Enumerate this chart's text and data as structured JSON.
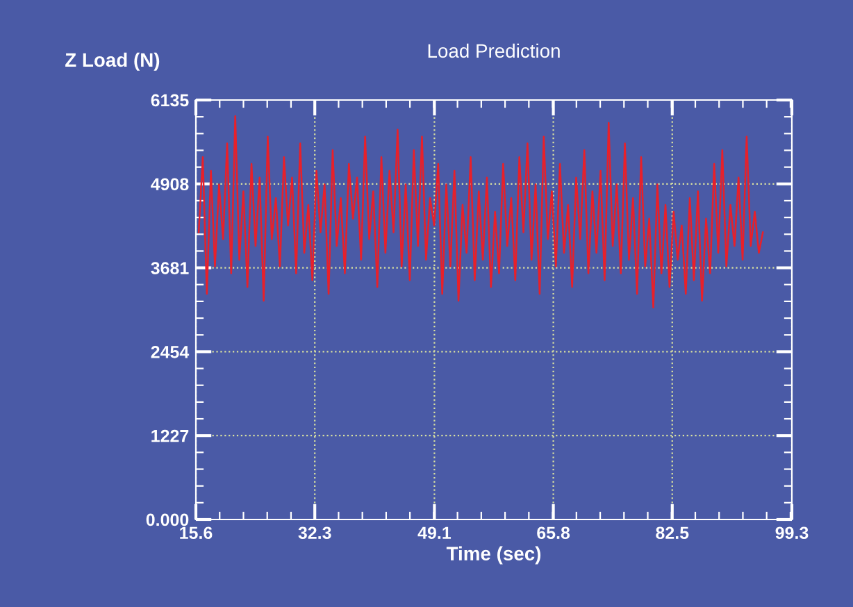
{
  "chart_data": {
    "type": "line",
    "title": "Load Prediction",
    "xlabel": "Time (sec)",
    "ylabel": "Z Load (N)",
    "xlim": [
      15.6,
      99.3
    ],
    "xticks": [
      15.6,
      32.3,
      49.1,
      65.8,
      82.5,
      99.3
    ],
    "ylim": [
      0,
      6135
    ],
    "yticks": [
      {
        "value": 0,
        "label": "0.000"
      },
      1227,
      2454,
      3681,
      4908,
      6135
    ],
    "grid": true,
    "marker": "none",
    "line_style": "solid",
    "series": [
      {
        "color": "#e8202a",
        "x": [
          16.0,
          16.57,
          17.14,
          17.71,
          18.28,
          18.85,
          19.42,
          19.99,
          20.56,
          21.13,
          21.7,
          22.27,
          22.84,
          23.41,
          23.98,
          24.55,
          25.12,
          25.69,
          26.26,
          26.83,
          27.4,
          27.97,
          28.54,
          29.11,
          29.68,
          30.25,
          30.82,
          31.39,
          31.96,
          32.53,
          33.1,
          33.67,
          34.24,
          34.81,
          35.38,
          35.95,
          36.52,
          37.09,
          37.66,
          38.23,
          38.8,
          39.37,
          39.94,
          40.51,
          41.08,
          41.65,
          42.22,
          42.79,
          43.36,
          43.93,
          44.5,
          45.07,
          45.64,
          46.21,
          46.78,
          47.35,
          47.92,
          48.49,
          49.06,
          49.63,
          50.2,
          50.77,
          51.34,
          51.91,
          52.48,
          53.05,
          53.62,
          54.19,
          54.76,
          55.33,
          55.9,
          56.47,
          57.04,
          57.61,
          58.18,
          58.75,
          59.32,
          59.89,
          60.46,
          61.03,
          61.6,
          62.17,
          62.74,
          63.31,
          63.88,
          64.45,
          65.02,
          65.59,
          66.16,
          66.73,
          67.3,
          67.87,
          68.44,
          69.01,
          69.58,
          70.15,
          70.72,
          71.29,
          71.86,
          72.43,
          73.0,
          73.57,
          74.14,
          74.71,
          75.28,
          75.85,
          76.42,
          76.99,
          77.56,
          78.13,
          78.7,
          79.27,
          79.84,
          80.41,
          80.98,
          81.55,
          82.12,
          82.69,
          83.26,
          83.83,
          84.4,
          84.97,
          85.54,
          86.11,
          86.68,
          87.25,
          87.82,
          88.39,
          88.96,
          89.53,
          90.1,
          90.67,
          91.24,
          91.81,
          92.38,
          92.95,
          93.52,
          94.09,
          94.66,
          95.23
        ],
        "values": [
          4200,
          5300,
          3300,
          5100,
          3700,
          4900,
          4100,
          5500,
          3600,
          5900,
          3800,
          4800,
          3400,
          5200,
          4000,
          5000,
          3200,
          5600,
          4100,
          4700,
          3700,
          5300,
          4300,
          5000,
          3600,
          5500,
          3900,
          4600,
          3500,
          5100,
          4200,
          4900,
          3300,
          5400,
          4000,
          4700,
          3600,
          5200,
          4400,
          5000,
          3800,
          5600,
          4100,
          4800,
          3400,
          5300,
          3900,
          5100,
          4200,
          5700,
          3700,
          4900,
          3500,
          5400,
          4000,
          5600,
          3800,
          4700,
          4300,
          5200,
          3300,
          4900,
          3700,
          5100,
          3200,
          4600,
          3900,
          5300,
          3500,
          4800,
          3800,
          5000,
          3400,
          4500,
          3600,
          5200,
          4000,
          4700,
          3500,
          5300,
          4200,
          5500,
          3800,
          4900,
          3300,
          5600,
          4100,
          4800,
          3700,
          5200,
          3900,
          4600,
          3400,
          5000,
          4100,
          5400,
          3600,
          4800,
          3900,
          5100,
          3500,
          5800,
          4000,
          4900,
          3600,
          5500,
          3800,
          4700,
          3300,
          5300,
          3700,
          4400,
          3100,
          4900,
          3600,
          4600,
          3400,
          4500,
          3800,
          4300,
          3300,
          4700,
          3500,
          4800,
          3200,
          4400,
          3600,
          5200,
          3900,
          5400,
          3700,
          4600,
          4000,
          5000,
          3800,
          5600,
          4000,
          4500,
          3900,
          4200
        ]
      }
    ]
  }
}
